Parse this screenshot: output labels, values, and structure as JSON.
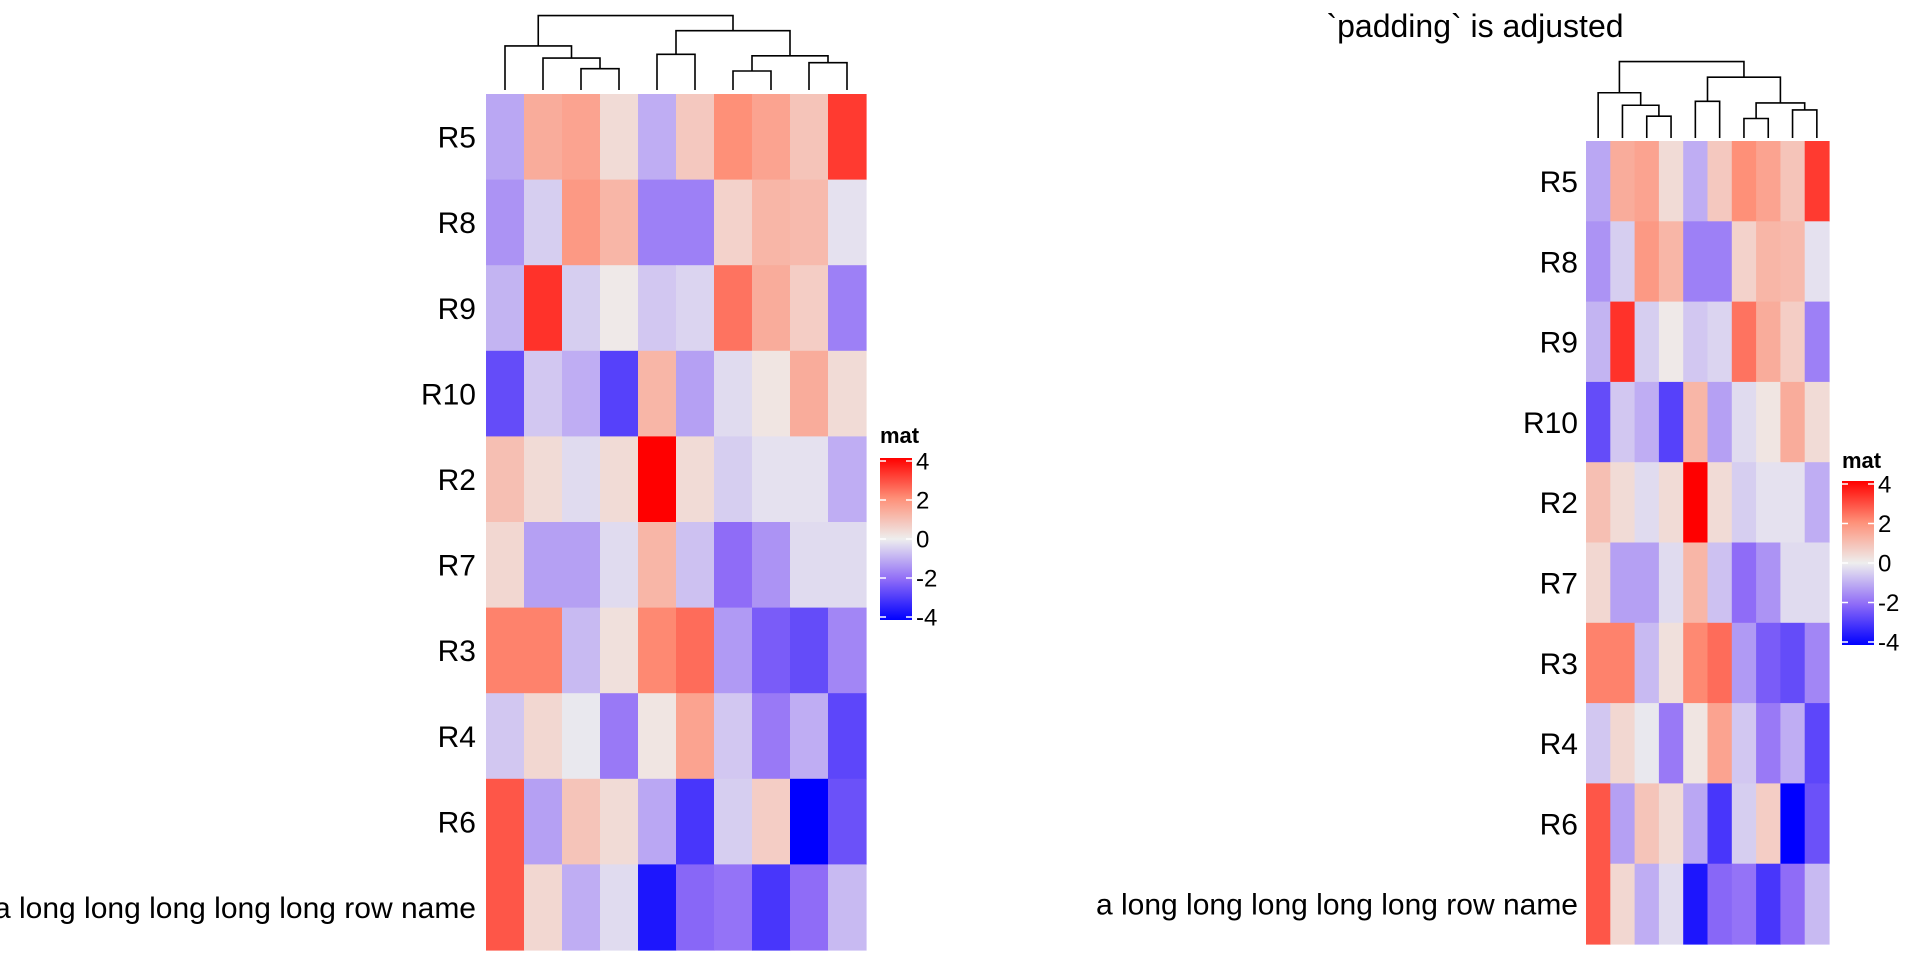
{
  "chart_data": [
    {
      "type": "heatmap",
      "title": "",
      "row_labels": [
        "R5",
        "R8",
        "R9",
        "R10",
        "R2",
        "R7",
        "R3",
        "R4",
        "R6",
        "a long long long long long row name"
      ],
      "column_labels": [],
      "values": [
        [
          -1.1,
          1.4,
          1.6,
          0.4,
          -1.0,
          0.8,
          2.0,
          1.6,
          0.9,
          3.2
        ],
        [
          -1.4,
          -0.5,
          1.8,
          1.2,
          -1.7,
          -1.7,
          0.6,
          1.2,
          1.1,
          -0.2
        ],
        [
          -0.9,
          3.3,
          -0.5,
          0.1,
          -0.6,
          -0.4,
          2.4,
          1.4,
          0.7,
          -1.7
        ],
        [
          -2.6,
          -0.6,
          -1.0,
          -2.8,
          1.2,
          -1.2,
          -0.3,
          0.2,
          1.4,
          0.4
        ],
        [
          1.0,
          0.4,
          -0.3,
          0.4,
          4.0,
          0.4,
          -0.5,
          -0.2,
          -0.2,
          -1.0
        ],
        [
          0.5,
          -1.2,
          -1.2,
          -0.3,
          1.2,
          -0.7,
          -2.0,
          -1.4,
          -0.3,
          -0.3
        ],
        [
          2.2,
          2.2,
          -0.8,
          0.3,
          2.1,
          2.5,
          -1.3,
          -2.3,
          -2.6,
          -1.6
        ],
        [
          -0.6,
          0.5,
          -0.1,
          -1.8,
          0.2,
          1.6,
          -0.6,
          -1.8,
          -1.0,
          -2.7
        ],
        [
          2.8,
          -1.2,
          0.9,
          0.4,
          -1.1,
          -3.0,
          -0.5,
          0.7,
          -4.0,
          -2.5
        ],
        [
          2.8,
          0.5,
          -1.0,
          -0.3,
          -3.6,
          -2.1,
          -1.9,
          -3.0,
          -2.0,
          -0.8
        ]
      ],
      "color_scale": [
        {
          "value": -4,
          "color": "#0000ff"
        },
        {
          "value": -2,
          "color": "#8f6cf7"
        },
        {
          "value": 0,
          "color": "#eeeeee"
        },
        {
          "value": 2,
          "color": "#fe9078"
        },
        {
          "value": 4,
          "color": "#ff0000"
        }
      ],
      "legend": {
        "title": "mat",
        "ticks": [
          4,
          2,
          0,
          -2,
          -4
        ],
        "placement": "right"
      },
      "column_dendrogram": true,
      "column_order_labels": []
    },
    {
      "type": "heatmap",
      "title": "`padding` is adjusted",
      "row_labels": [
        "R5",
        "R8",
        "R9",
        "R10",
        "R2",
        "R7",
        "R3",
        "R4",
        "R6",
        "a long long long long long row name"
      ],
      "column_labels": [],
      "values": [
        [
          -1.1,
          1.4,
          1.6,
          0.4,
          -1.0,
          0.8,
          2.0,
          1.6,
          0.9,
          3.2
        ],
        [
          -1.4,
          -0.5,
          1.8,
          1.2,
          -1.7,
          -1.7,
          0.6,
          1.2,
          1.1,
          -0.2
        ],
        [
          -0.9,
          3.3,
          -0.5,
          0.1,
          -0.6,
          -0.4,
          2.4,
          1.4,
          0.7,
          -1.7
        ],
        [
          -2.6,
          -0.6,
          -1.0,
          -2.8,
          1.2,
          -1.2,
          -0.3,
          0.2,
          1.4,
          0.4
        ],
        [
          1.0,
          0.4,
          -0.3,
          0.4,
          4.0,
          0.4,
          -0.5,
          -0.2,
          -0.2,
          -1.0
        ],
        [
          0.5,
          -1.2,
          -1.2,
          -0.3,
          1.2,
          -0.7,
          -2.0,
          -1.4,
          -0.3,
          -0.3
        ],
        [
          2.2,
          2.2,
          -0.8,
          0.3,
          2.1,
          2.5,
          -1.3,
          -2.3,
          -2.6,
          -1.6
        ],
        [
          -0.6,
          0.5,
          -0.1,
          -1.8,
          0.2,
          1.6,
          -0.6,
          -1.8,
          -1.0,
          -2.7
        ],
        [
          2.8,
          -1.2,
          0.9,
          0.4,
          -1.1,
          -3.0,
          -0.5,
          0.7,
          -4.0,
          -2.5
        ],
        [
          2.8,
          0.5,
          -1.0,
          -0.3,
          -3.6,
          -2.1,
          -1.9,
          -3.0,
          -2.0,
          -0.8
        ]
      ],
      "color_scale": [
        {
          "value": -4,
          "color": "#0000ff"
        },
        {
          "value": -2,
          "color": "#8f6cf7"
        },
        {
          "value": 0,
          "color": "#eeeeee"
        },
        {
          "value": 2,
          "color": "#fe9078"
        },
        {
          "value": 4,
          "color": "#ff0000"
        }
      ],
      "legend": {
        "title": "mat",
        "ticks": [
          4,
          2,
          0,
          -2,
          -4
        ],
        "placement": "right"
      },
      "column_dendrogram": true
    }
  ]
}
